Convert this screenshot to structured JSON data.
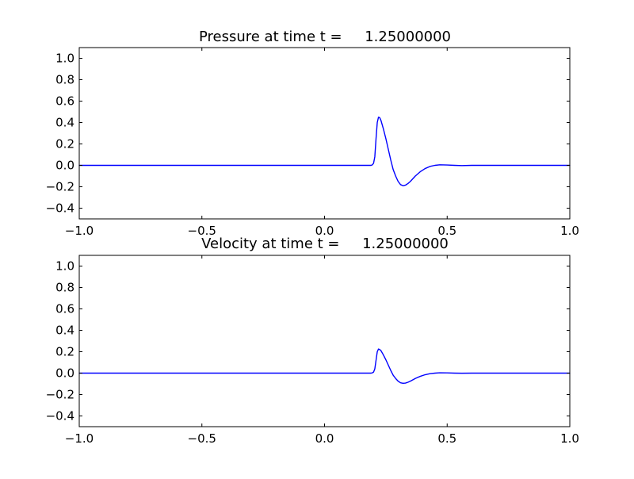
{
  "chart_data": [
    {
      "type": "line",
      "title": "Pressure at time t =     1.25000000",
      "xlabel": "",
      "ylabel": "",
      "xlim": [
        -1.0,
        1.0
      ],
      "ylim": [
        -0.5,
        1.1
      ],
      "xticks": [
        -1.0,
        -0.5,
        0.0,
        0.5,
        1.0
      ],
      "xtick_labels": [
        "−1.0",
        "−0.5",
        "0.0",
        "0.5",
        "1.0"
      ],
      "yticks": [
        -0.4,
        -0.2,
        0.0,
        0.2,
        0.4,
        0.6,
        0.8,
        1.0
      ],
      "ytick_labels": [
        "−0.4",
        "−0.2",
        "0.0",
        "0.2",
        "0.4",
        "0.6",
        "0.8",
        "1.0"
      ],
      "grid": false,
      "color": "#0000ff",
      "series": [
        {
          "x": [
            -1.0,
            0.0,
            0.19,
            0.195,
            0.2,
            0.205,
            0.21,
            0.215,
            0.22,
            0.225,
            0.23,
            0.24,
            0.25,
            0.26,
            0.27,
            0.28,
            0.29,
            0.3,
            0.31,
            0.32,
            0.33,
            0.34,
            0.35,
            0.37,
            0.39,
            0.41,
            0.43,
            0.45,
            0.47,
            0.5,
            0.53,
            0.56,
            0.6,
            1.0
          ],
          "y": [
            0.0,
            0.0,
            0.0,
            0.005,
            0.02,
            0.08,
            0.25,
            0.4,
            0.45,
            0.445,
            0.42,
            0.34,
            0.25,
            0.15,
            0.05,
            -0.04,
            -0.1,
            -0.15,
            -0.18,
            -0.19,
            -0.185,
            -0.17,
            -0.15,
            -0.1,
            -0.06,
            -0.03,
            -0.01,
            0.0,
            0.005,
            0.003,
            0.0,
            -0.002,
            0.0,
            0.0
          ]
        }
      ]
    },
    {
      "type": "line",
      "title": "Velocity at time t =     1.25000000",
      "xlabel": "",
      "ylabel": "",
      "xlim": [
        -1.0,
        1.0
      ],
      "ylim": [
        -0.5,
        1.1
      ],
      "xticks": [
        -1.0,
        -0.5,
        0.0,
        0.5,
        1.0
      ],
      "xtick_labels": [
        "−1.0",
        "−0.5",
        "0.0",
        "0.5",
        "1.0"
      ],
      "yticks": [
        -0.4,
        -0.2,
        0.0,
        0.2,
        0.4,
        0.6,
        0.8,
        1.0
      ],
      "ytick_labels": [
        "−0.4",
        "−0.2",
        "0.0",
        "0.2",
        "0.4",
        "0.6",
        "0.8",
        "1.0"
      ],
      "grid": false,
      "color": "#0000ff",
      "series": [
        {
          "x": [
            -1.0,
            0.0,
            0.19,
            0.195,
            0.2,
            0.205,
            0.21,
            0.215,
            0.22,
            0.225,
            0.23,
            0.24,
            0.25,
            0.26,
            0.27,
            0.28,
            0.29,
            0.3,
            0.31,
            0.32,
            0.33,
            0.34,
            0.35,
            0.37,
            0.39,
            0.41,
            0.43,
            0.45,
            0.47,
            0.5,
            0.53,
            0.56,
            0.6,
            1.0
          ],
          "y": [
            0.0,
            0.0,
            0.0,
            0.003,
            0.01,
            0.04,
            0.12,
            0.2,
            0.225,
            0.22,
            0.21,
            0.17,
            0.125,
            0.075,
            0.025,
            -0.02,
            -0.05,
            -0.075,
            -0.09,
            -0.095,
            -0.093,
            -0.085,
            -0.075,
            -0.05,
            -0.03,
            -0.015,
            -0.005,
            0.0,
            0.003,
            0.002,
            0.0,
            -0.001,
            0.0,
            0.0
          ]
        }
      ]
    }
  ]
}
